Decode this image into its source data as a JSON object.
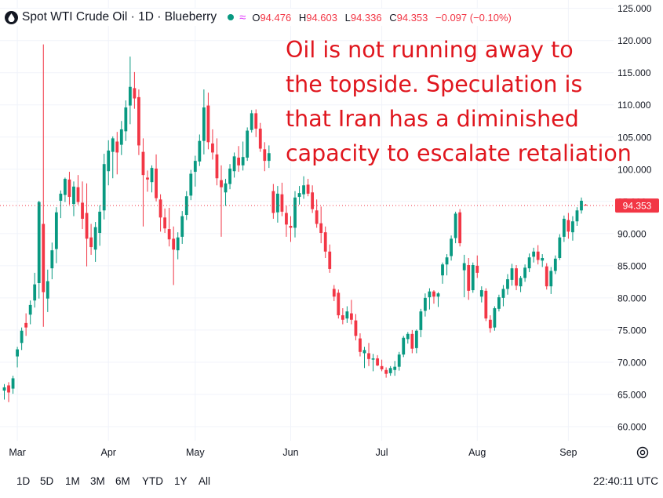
{
  "header": {
    "symbol": "Spot WTI Crude Oil · 1D · Blueberry",
    "ohlc": {
      "o_label": "O",
      "o": "94.476",
      "h_label": "H",
      "h": "94.603",
      "l_label": "L",
      "l": "94.336",
      "c_label": "C",
      "c": "94.353",
      "change": "−0.097 (−0.10%)"
    },
    "icons": [
      "drop-icon",
      "status-dot",
      "wave-icon"
    ]
  },
  "annotation": {
    "lines": [
      "Oil is not running away to",
      "the topside. Speculation is",
      "that Iran has a diminished",
      "capacity to escalate retaliation"
    ]
  },
  "range_buttons": [
    "1D",
    "5D",
    "1M",
    "3M",
    "6M",
    "YTD",
    "1Y",
    "All"
  ],
  "clock": "22:40:11 UTC",
  "colors": {
    "up": "#089981",
    "down": "#f23645",
    "annotation": "#e0161e",
    "price_label_bg": "#f23645",
    "grid": "#f0f3fa"
  },
  "chart_data": {
    "type": "candlestick",
    "price_label": "94.353",
    "last_price": 94.353,
    "ylim": [
      57.8,
      126.3
    ],
    "y_ticks": [
      125,
      120,
      115,
      110,
      105,
      100,
      95,
      90,
      85,
      80,
      75,
      70,
      65,
      60
    ],
    "y_tick_labels": [
      "125.000",
      "120.000",
      "115.000",
      "110.000",
      "105.000",
      "100.000",
      "95.000",
      "90.000",
      "85.000",
      "80.000",
      "75.000",
      "70.000",
      "65.000",
      "60.000"
    ],
    "x_labels": [
      "Mar",
      "Apr",
      "May",
      "Jun",
      "Jul",
      "Aug",
      "Sep"
    ],
    "x_label_index": [
      3,
      24,
      44,
      66,
      87,
      109,
      130
    ],
    "grid": true,
    "candles": [
      [
        65.6,
        66.6,
        64.2,
        66.1
      ],
      [
        66.4,
        66.9,
        63.8,
        65.3
      ],
      [
        65.9,
        67.9,
        65.1,
        67.5
      ],
      [
        70.9,
        72.4,
        69.2,
        72.0
      ],
      [
        73.0,
        75.4,
        71.9,
        74.9
      ],
      [
        76.1,
        77.6,
        74.1,
        75.4
      ],
      [
        77.4,
        79.6,
        75.9,
        78.9
      ],
      [
        79.6,
        83.9,
        78.5,
        82.1
      ],
      [
        82.3,
        95.1,
        79.9,
        94.9
      ],
      [
        91.5,
        119.4,
        75.5,
        80.9
      ],
      [
        79.9,
        84.4,
        77.8,
        82.6
      ],
      [
        84.6,
        88.6,
        82.9,
        87.4
      ],
      [
        87.6,
        94.1,
        85.4,
        93.3
      ],
      [
        95.1,
        96.7,
        92.4,
        96.2
      ],
      [
        96.0,
        98.7,
        94.9,
        98.5
      ],
      [
        98.4,
        99.6,
        94.5,
        95.7
      ],
      [
        94.6,
        98.1,
        92.7,
        97.3
      ],
      [
        97.2,
        99.1,
        94.5,
        94.9
      ],
      [
        94.8,
        98.1,
        90.7,
        92.3
      ],
      [
        93.2,
        97.8,
        84.9,
        89.2
      ],
      [
        89.4,
        91.5,
        86.7,
        87.9
      ],
      [
        87.5,
        91.8,
        85.6,
        91.0
      ],
      [
        90.1,
        94.4,
        88.1,
        93.4
      ],
      [
        93.6,
        102.4,
        92.2,
        100.8
      ],
      [
        99.7,
        104.5,
        97.5,
        102.9
      ],
      [
        102.7,
        105.1,
        98.6,
        104.8
      ],
      [
        104.3,
        105.8,
        99.2,
        102.6
      ],
      [
        103.8,
        107.5,
        102.2,
        106.2
      ],
      [
        105.9,
        110.7,
        104.4,
        109.6
      ],
      [
        109.9,
        117.5,
        107.0,
        112.8
      ],
      [
        112.6,
        115.1,
        109.4,
        111.0
      ],
      [
        111.2,
        112.4,
        102.2,
        103.7
      ],
      [
        102.7,
        104.8,
        91.1,
        99.1
      ],
      [
        98.7,
        99.8,
        96.5,
        98.4
      ],
      [
        98.0,
        100.6,
        96.4,
        100.2
      ],
      [
        100.1,
        102.3,
        95.0,
        95.5
      ],
      [
        95.3,
        96.1,
        90.3,
        92.5
      ],
      [
        92.5,
        93.9,
        90.1,
        90.8
      ],
      [
        90.7,
        94.0,
        88.0,
        89.1
      ],
      [
        89.2,
        91.1,
        82.0,
        87.5
      ],
      [
        87.4,
        90.2,
        86.0,
        89.4
      ],
      [
        89.5,
        93.5,
        88.4,
        92.7
      ],
      [
        92.9,
        96.6,
        92.1,
        95.8
      ],
      [
        95.9,
        99.9,
        95.2,
        99.3
      ],
      [
        99.6,
        102.1,
        97.3,
        101.3
      ],
      [
        101.2,
        105.4,
        100.5,
        104.4
      ],
      [
        104.4,
        112.4,
        102.3,
        109.6
      ],
      [
        109.9,
        111.9,
        103.1,
        104.2
      ],
      [
        104.0,
        106.2,
        101.5,
        102.6
      ],
      [
        102.3,
        104.8,
        97.5,
        98.6
      ],
      [
        98.3,
        100.6,
        89.5,
        97.2
      ],
      [
        96.4,
        98.5,
        94.3,
        97.8
      ],
      [
        97.7,
        100.8,
        96.9,
        100.1
      ],
      [
        99.7,
        102.6,
        98.7,
        102.0
      ],
      [
        101.8,
        103.6,
        99.6,
        100.6
      ],
      [
        100.6,
        104.3,
        99.8,
        101.9
      ],
      [
        101.8,
        106.5,
        101.3,
        106.0
      ],
      [
        106.1,
        109.2,
        105.7,
        108.7
      ],
      [
        108.7,
        109.3,
        105.0,
        106.3
      ],
      [
        106.3,
        107.2,
        102.7,
        103.2
      ],
      [
        103.1,
        104.2,
        99.7,
        101.3
      ],
      [
        101.3,
        103.7,
        100.2,
        102.5
      ],
      [
        96.6,
        97.7,
        92.3,
        93.2
      ],
      [
        93.3,
        97.4,
        91.7,
        96.2
      ],
      [
        96.1,
        97.9,
        92.7,
        93.4
      ],
      [
        93.2,
        94.3,
        89.5,
        91.4
      ],
      [
        91.2,
        92.7,
        88.7,
        90.9
      ],
      [
        90.9,
        96.6,
        89.4,
        95.6
      ],
      [
        95.7,
        97.4,
        94.5,
        96.3
      ],
      [
        96.1,
        98.9,
        95.4,
        97.5
      ],
      [
        97.6,
        98.5,
        95.8,
        96.2
      ],
      [
        96.4,
        97.5,
        93.2,
        93.8
      ],
      [
        93.6,
        95.3,
        90.9,
        91.5
      ],
      [
        91.6,
        94.2,
        88.5,
        90.1
      ],
      [
        90.2,
        91.1,
        86.2,
        87.2
      ],
      [
        87.2,
        88.3,
        83.9,
        84.5
      ],
      [
        81.4,
        82.0,
        79.5,
        80.2
      ],
      [
        80.8,
        81.3,
        76.8,
        77.3
      ],
      [
        77.3,
        78.4,
        75.9,
        76.6
      ],
      [
        76.8,
        78.7,
        76.1,
        77.9
      ],
      [
        77.6,
        79.7,
        75.9,
        76.6
      ],
      [
        76.5,
        77.5,
        73.4,
        74.1
      ],
      [
        73.7,
        74.5,
        70.9,
        71.6
      ],
      [
        71.4,
        72.4,
        69.1,
        71.9
      ],
      [
        71.4,
        73.0,
        69.4,
        70.5
      ],
      [
        70.4,
        71.3,
        68.6,
        70.6
      ],
      [
        70.6,
        71.1,
        69.4,
        69.5
      ],
      [
        69.4,
        70.4,
        68.6,
        68.9
      ],
      [
        68.8,
        69.2,
        67.6,
        68.2
      ],
      [
        68.3,
        69.4,
        67.9,
        69.1
      ],
      [
        68.8,
        70.2,
        67.9,
        69.3
      ],
      [
        69.3,
        71.6,
        68.7,
        71.2
      ],
      [
        71.2,
        74.1,
        70.8,
        73.8
      ],
      [
        73.6,
        74.7,
        72.9,
        74.4
      ],
      [
        74.4,
        75.0,
        71.4,
        72.1
      ],
      [
        72.2,
        75.1,
        71.4,
        74.9
      ],
      [
        75.0,
        78.3,
        73.9,
        77.9
      ],
      [
        78.0,
        80.7,
        77.1,
        80.0
      ],
      [
        80.1,
        81.5,
        78.2,
        81.0
      ],
      [
        81.0,
        81.2,
        79.1,
        80.2
      ],
      [
        80.2,
        80.9,
        78.6,
        80.7
      ],
      [
        83.5,
        85.5,
        82.2,
        85.2
      ],
      [
        85.2,
        86.8,
        83.5,
        86.3
      ],
      [
        86.5,
        89.7,
        85.8,
        89.2
      ],
      [
        89.3,
        93.4,
        88.5,
        93.1
      ],
      [
        93.3,
        93.8,
        88.0,
        88.5
      ],
      [
        84.3,
        86.7,
        80.1,
        85.4
      ],
      [
        85.1,
        86.2,
        79.7,
        81.1
      ],
      [
        81.2,
        85.5,
        80.8,
        85.1
      ],
      [
        85.0,
        86.6,
        83.1,
        83.9
      ],
      [
        80.2,
        81.8,
        79.3,
        81.2
      ],
      [
        81.1,
        81.5,
        76.4,
        76.8
      ],
      [
        76.6,
        77.3,
        74.6,
        75.3
      ],
      [
        75.4,
        78.7,
        74.9,
        78.4
      ],
      [
        78.3,
        80.5,
        77.9,
        80.1
      ],
      [
        80.0,
        82.0,
        78.7,
        81.4
      ],
      [
        81.4,
        83.7,
        80.5,
        82.9
      ],
      [
        82.8,
        85.3,
        81.9,
        84.6
      ],
      [
        84.6,
        85.1,
        81.2,
        81.9
      ],
      [
        81.8,
        83.4,
        80.9,
        83.1
      ],
      [
        83.1,
        85.2,
        82.5,
        84.7
      ],
      [
        84.6,
        86.9,
        84.0,
        86.3
      ],
      [
        86.4,
        87.8,
        85.5,
        87.2
      ],
      [
        87.2,
        88.2,
        85.2,
        85.9
      ],
      [
        85.8,
        86.8,
        84.8,
        86.2
      ],
      [
        84.9,
        85.4,
        81.3,
        81.8
      ],
      [
        81.8,
        84.8,
        80.6,
        84.2
      ],
      [
        84.2,
        86.6,
        83.7,
        86.1
      ],
      [
        86.2,
        89.9,
        85.9,
        89.4
      ],
      [
        89.5,
        92.8,
        88.7,
        92.3
      ],
      [
        92.1,
        93.2,
        89.2,
        90.3
      ],
      [
        90.2,
        92.7,
        88.9,
        91.9
      ],
      [
        91.9,
        94.1,
        91.2,
        93.6
      ],
      [
        93.6,
        95.6,
        93.1,
        95.1
      ],
      [
        94.476,
        94.603,
        94.336,
        94.353
      ]
    ]
  }
}
